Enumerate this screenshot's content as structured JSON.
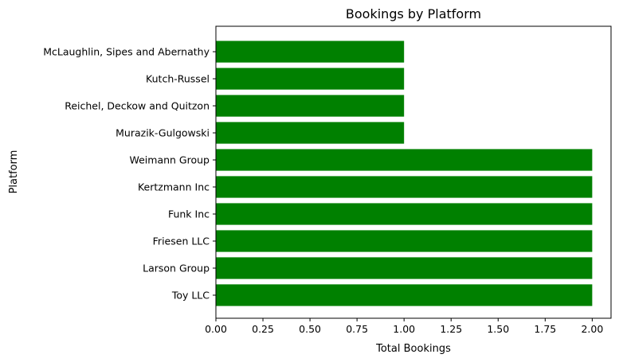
{
  "chart_data": {
    "type": "bar",
    "orientation": "horizontal",
    "title": "Bookings by Platform",
    "xlabel": "Total Bookings",
    "ylabel": "Platform",
    "categories": [
      "Toy LLC",
      "Larson Group",
      "Friesen LLC",
      "Funk Inc",
      "Kertzmann Inc",
      "Weimann Group",
      "Murazik-Gulgowski",
      "Reichel, Deckow and Quitzon",
      "Kutch-Russel",
      "McLaughlin, Sipes and Abernathy"
    ],
    "values": [
      2,
      2,
      2,
      2,
      2,
      2,
      1,
      1,
      1,
      1
    ],
    "xlim": [
      0,
      2.1
    ],
    "xticks": [
      "0.00",
      "0.25",
      "0.50",
      "0.75",
      "1.00",
      "1.25",
      "1.50",
      "1.75",
      "2.00"
    ],
    "bar_color": "#008000",
    "grid": false,
    "legend": "none"
  }
}
